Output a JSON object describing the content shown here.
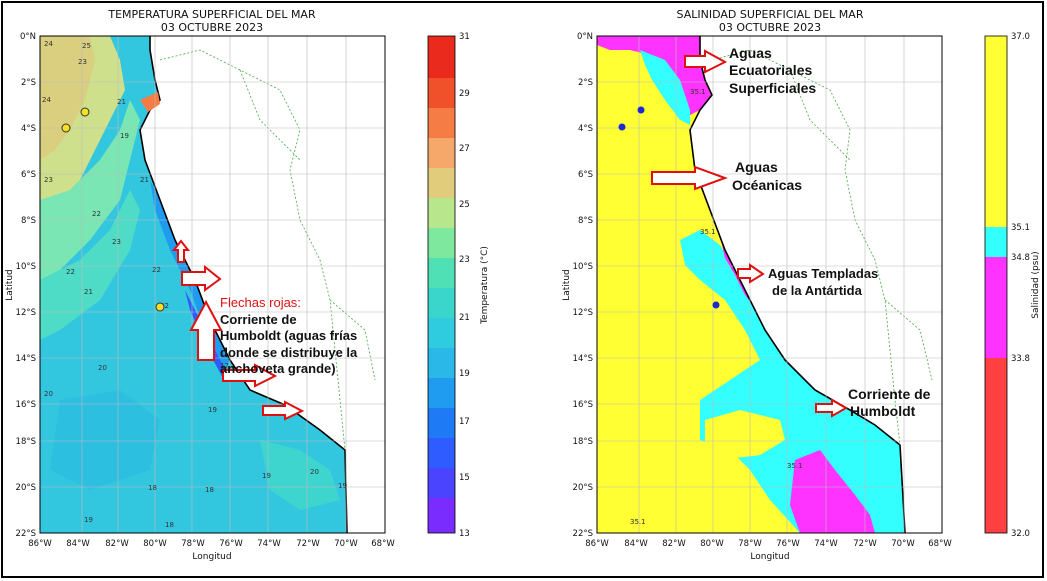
{
  "left_map": {
    "title_line1": "TEMPERATURA SUPERFICIAL DEL MAR",
    "title_line2": "03 OCTUBRE 2023",
    "xlabel": "Longitud",
    "ylabel": "Latitud",
    "colorbar_label": "Temperatura (°C)",
    "colorbar_ticks": [
      "31",
      "29",
      "27",
      "25",
      "23",
      "21",
      "19",
      "17",
      "15",
      "13"
    ],
    "contour_labels": [
      "24",
      "25",
      "23",
      "21",
      "24",
      "19",
      "23",
      "22",
      "23",
      "22",
      "21",
      "22",
      "21",
      "22",
      "20",
      "19",
      "20",
      "18",
      "18",
      "20",
      "19",
      "19",
      "19",
      "18",
      "17"
    ],
    "annotation_red": "Flechas rojas:",
    "annotation_lines": [
      "Corriente de",
      "Humboldt (aguas frías",
      "donde se distribuye la",
      "anchoveta grande)"
    ]
  },
  "right_map": {
    "title_line1": "SALINIDAD SUPERFICIAL DEL MAR",
    "title_line2": "03 OCTUBRE 2023",
    "xlabel": "Longitud",
    "ylabel": "Latitud",
    "colorbar_label": "Salinidad (psu)",
    "colorbar_ticks": [
      "37.0",
      "35.1",
      "34.8",
      "33.8",
      "32.0"
    ],
    "contour_labels": [
      "35.1",
      "35.1",
      "35.1",
      "35.1"
    ],
    "labels": {
      "ecuatoriales": [
        "Aguas",
        "Ecuatoriales",
        "Superficiales"
      ],
      "oceanicas": [
        "Aguas",
        "Océanicas"
      ],
      "templadas": [
        "Aguas Templadas",
        "de la Antártida"
      ],
      "humboldt": [
        "Corriente de",
        "Humboldt"
      ]
    }
  },
  "axes": {
    "lat_ticks": [
      "0°N",
      "2°S",
      "4°S",
      "6°S",
      "8°S",
      "10°S",
      "12°S",
      "14°S",
      "16°S",
      "18°S",
      "20°S",
      "22°S"
    ],
    "lon_ticks": [
      "86°W",
      "84°W",
      "82°W",
      "80°W",
      "78°W",
      "76°W",
      "74°W",
      "72°W",
      "70°W",
      "68°W"
    ]
  },
  "colors": {
    "sst": [
      "#7a2cff",
      "#3a4dff",
      "#1f8ff5",
      "#2fc2e0",
      "#3dd9c4",
      "#58e6a0",
      "#a8e98a",
      "#d9d27a",
      "#f5b16a",
      "#f57d45",
      "#f0502a",
      "#e8261b"
    ],
    "sal_high": "#ffff33",
    "sal_mid": "#33ffff",
    "sal_low": "#ff33ff",
    "sal_vlow": "#ff4040",
    "arrow": "#e01010"
  }
}
